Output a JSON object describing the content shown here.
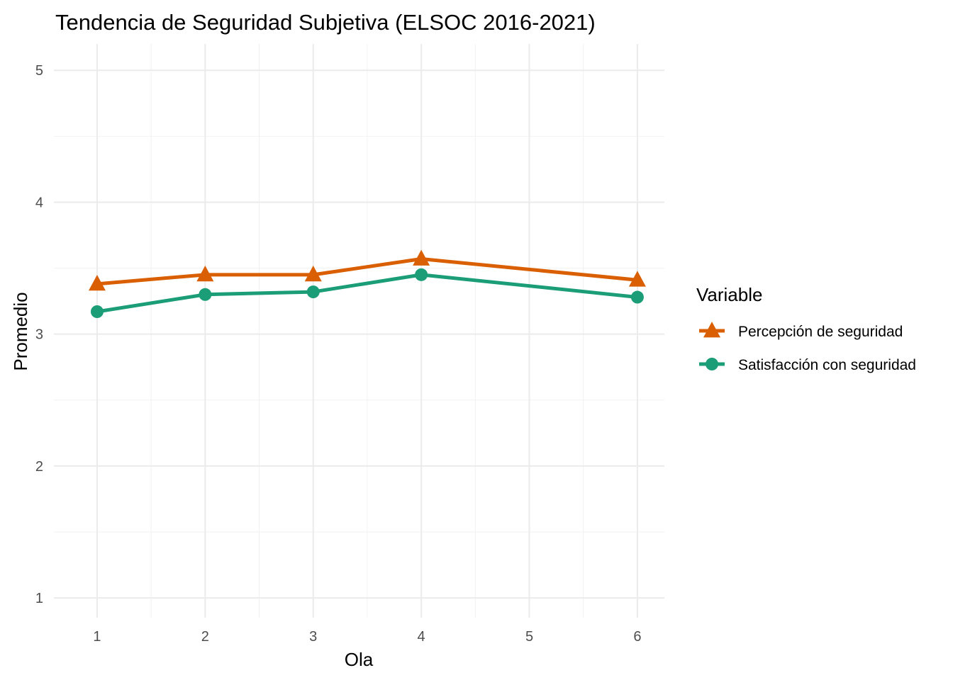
{
  "chart_data": {
    "type": "line",
    "title": "Tendencia de Seguridad Subjetiva (ELSOC 2016-2021)",
    "xlabel": "Ola",
    "ylabel": "Promedio",
    "x": [
      1,
      2,
      3,
      4,
      6
    ],
    "x_ticks": [
      "1",
      "2",
      "3",
      "4",
      "5",
      "6"
    ],
    "y_ticks": [
      "1",
      "2",
      "3",
      "4",
      "5"
    ],
    "xlim": [
      0.6,
      6.25
    ],
    "ylim": [
      0.85,
      5.2
    ],
    "grid": true,
    "legend": {
      "title": "Variable",
      "position": "right"
    },
    "series": [
      {
        "name": "Percepción de seguridad",
        "values": [
          3.38,
          3.45,
          3.45,
          3.57,
          3.41
        ],
        "color": "#D95F02",
        "marker": "triangle"
      },
      {
        "name": "Satisfacción con seguridad",
        "values": [
          3.17,
          3.3,
          3.32,
          3.45,
          3.28
        ],
        "color": "#1B9E77",
        "marker": "circle"
      }
    ]
  }
}
